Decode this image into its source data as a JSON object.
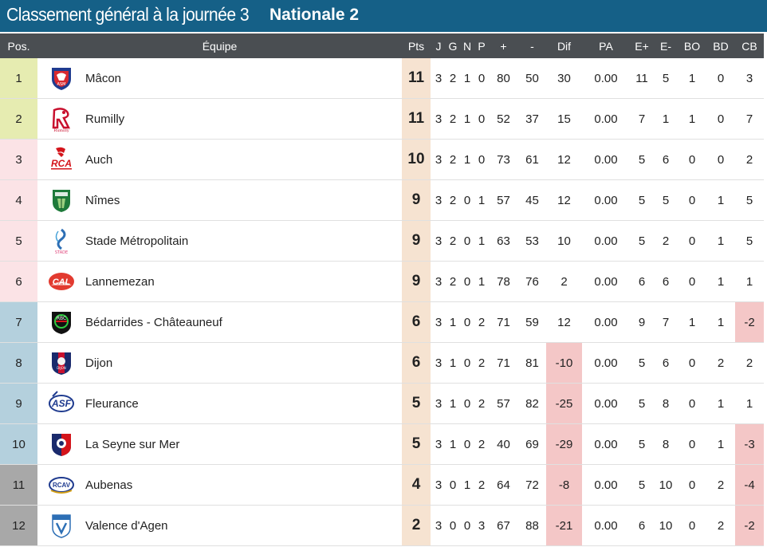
{
  "header": {
    "title": "Classement général à la journée 3",
    "competition": "Nationale 2"
  },
  "columns": {
    "pos": "Pos.",
    "team": "Équipe",
    "pts": "Pts",
    "j": "J",
    "g": "G",
    "n": "N",
    "p": "P",
    "plus": "+",
    "minus": "-",
    "dif": "Dif",
    "pa": "PA",
    "eplus": "E+",
    "eminus": "E-",
    "bo": "BO",
    "bd": "BD",
    "cb": "CB"
  },
  "colors": {
    "qualified": "#e6ecb1",
    "playoff": "#fbe3e6",
    "mid": "#b4d0dd",
    "relegation": "#a8a8a8",
    "negative": "#f4c7c7",
    "points_bg": "#f6e3d1"
  },
  "rows": [
    {
      "pos": "1",
      "team": "Mâcon",
      "logo": "macon-logo",
      "pts": "11",
      "j": "3",
      "g": "2",
      "n": "1",
      "p": "0",
      "plus": "80",
      "minus": "50",
      "dif": "30",
      "pa": "0.00",
      "eplus": "11",
      "eminus": "5",
      "bo": "1",
      "bd": "0",
      "cb": "3"
    },
    {
      "pos": "2",
      "team": "Rumilly",
      "logo": "rumilly-logo",
      "pts": "11",
      "j": "3",
      "g": "2",
      "n": "1",
      "p": "0",
      "plus": "52",
      "minus": "37",
      "dif": "15",
      "pa": "0.00",
      "eplus": "7",
      "eminus": "1",
      "bo": "1",
      "bd": "0",
      "cb": "7"
    },
    {
      "pos": "3",
      "team": "Auch",
      "logo": "auch-logo",
      "pts": "10",
      "j": "3",
      "g": "2",
      "n": "1",
      "p": "0",
      "plus": "73",
      "minus": "61",
      "dif": "12",
      "pa": "0.00",
      "eplus": "5",
      "eminus": "6",
      "bo": "0",
      "bd": "0",
      "cb": "2"
    },
    {
      "pos": "4",
      "team": "Nîmes",
      "logo": "nimes-logo",
      "pts": "9",
      "j": "3",
      "g": "2",
      "n": "0",
      "p": "1",
      "plus": "57",
      "minus": "45",
      "dif": "12",
      "pa": "0.00",
      "eplus": "5",
      "eminus": "5",
      "bo": "0",
      "bd": "1",
      "cb": "5"
    },
    {
      "pos": "5",
      "team": "Stade Métropolitain",
      "logo": "stade-metropolitain-logo",
      "pts": "9",
      "j": "3",
      "g": "2",
      "n": "0",
      "p": "1",
      "plus": "63",
      "minus": "53",
      "dif": "10",
      "pa": "0.00",
      "eplus": "5",
      "eminus": "2",
      "bo": "0",
      "bd": "1",
      "cb": "5"
    },
    {
      "pos": "6",
      "team": "Lannemezan",
      "logo": "lannemezan-logo",
      "pts": "9",
      "j": "3",
      "g": "2",
      "n": "0",
      "p": "1",
      "plus": "78",
      "minus": "76",
      "dif": "2",
      "pa": "0.00",
      "eplus": "6",
      "eminus": "6",
      "bo": "0",
      "bd": "1",
      "cb": "1"
    },
    {
      "pos": "7",
      "team": "Bédarrides - Châteauneuf",
      "logo": "bedarrides-logo",
      "pts": "6",
      "j": "3",
      "g": "1",
      "n": "0",
      "p": "2",
      "plus": "71",
      "minus": "59",
      "dif": "12",
      "pa": "0.00",
      "eplus": "9",
      "eminus": "7",
      "bo": "1",
      "bd": "1",
      "cb": "-2"
    },
    {
      "pos": "8",
      "team": "Dijon",
      "logo": "dijon-logo",
      "pts": "6",
      "j": "3",
      "g": "1",
      "n": "0",
      "p": "2",
      "plus": "71",
      "minus": "81",
      "dif": "-10",
      "pa": "0.00",
      "eplus": "5",
      "eminus": "6",
      "bo": "0",
      "bd": "2",
      "cb": "2"
    },
    {
      "pos": "9",
      "team": "Fleurance",
      "logo": "fleurance-logo",
      "pts": "5",
      "j": "3",
      "g": "1",
      "n": "0",
      "p": "2",
      "plus": "57",
      "minus": "82",
      "dif": "-25",
      "pa": "0.00",
      "eplus": "5",
      "eminus": "8",
      "bo": "0",
      "bd": "1",
      "cb": "1"
    },
    {
      "pos": "10",
      "team": "La Seyne sur Mer",
      "logo": "la-seyne-logo",
      "pts": "5",
      "j": "3",
      "g": "1",
      "n": "0",
      "p": "2",
      "plus": "40",
      "minus": "69",
      "dif": "-29",
      "pa": "0.00",
      "eplus": "5",
      "eminus": "8",
      "bo": "0",
      "bd": "1",
      "cb": "-3"
    },
    {
      "pos": "11",
      "team": "Aubenas",
      "logo": "aubenas-logo",
      "pts": "4",
      "j": "3",
      "g": "0",
      "n": "1",
      "p": "2",
      "plus": "64",
      "minus": "72",
      "dif": "-8",
      "pa": "0.00",
      "eplus": "5",
      "eminus": "10",
      "bo": "0",
      "bd": "2",
      "cb": "-4"
    },
    {
      "pos": "12",
      "team": "Valence d'Agen",
      "logo": "valence-agen-logo",
      "pts": "2",
      "j": "3",
      "g": "0",
      "n": "0",
      "p": "3",
      "plus": "67",
      "minus": "88",
      "dif": "-21",
      "pa": "0.00",
      "eplus": "6",
      "eminus": "10",
      "bo": "0",
      "bd": "2",
      "cb": "-2"
    }
  ]
}
